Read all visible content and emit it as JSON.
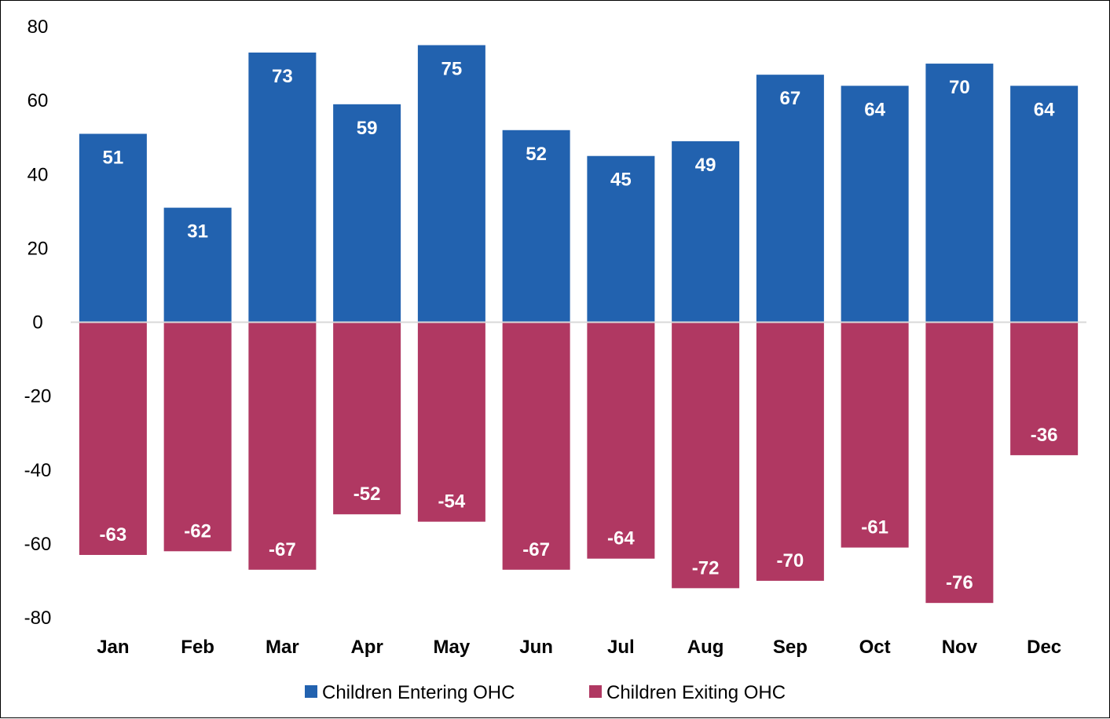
{
  "chart_data": {
    "type": "bar",
    "stacked": true,
    "categories": [
      "Jan",
      "Feb",
      "Mar",
      "Apr",
      "May",
      "Jun",
      "Jul",
      "Aug",
      "Sep",
      "Oct",
      "Nov",
      "Dec"
    ],
    "series": [
      {
        "name": "Children Entering OHC",
        "color": "#2262AF",
        "values": [
          51,
          31,
          73,
          59,
          75,
          52,
          45,
          49,
          67,
          64,
          70,
          64
        ]
      },
      {
        "name": "Children Exiting OHC",
        "color": "#B03862",
        "values": [
          -63,
          -62,
          -67,
          -52,
          -54,
          -67,
          -64,
          -72,
          -70,
          -61,
          -76,
          -36
        ]
      }
    ],
    "title": "",
    "xlabel": "",
    "ylabel": "",
    "ylim": [
      -80,
      80
    ],
    "yticks": [
      80,
      60,
      40,
      20,
      0,
      -20,
      -40,
      -60,
      -80
    ],
    "grid": false,
    "data_labels": true,
    "legend": "bottom"
  }
}
